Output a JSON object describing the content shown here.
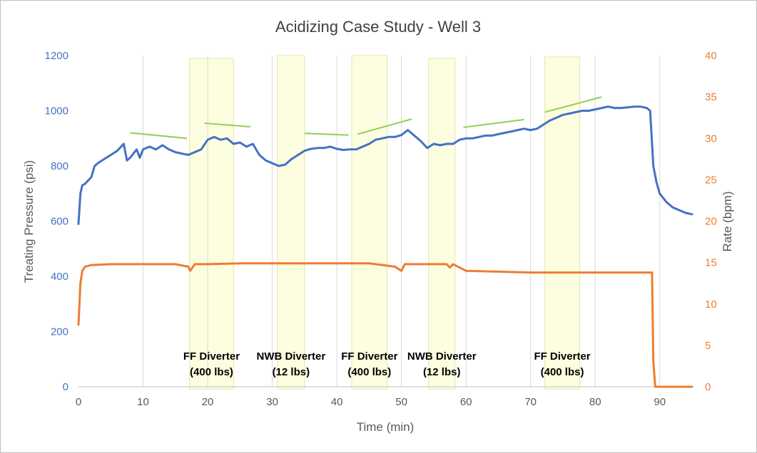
{
  "chart_data": {
    "type": "line",
    "title": "Acidizing Case Study - Well 3",
    "xlabel": "Time (min)",
    "ylabel": "Treating Pressure (psi)",
    "y2label": "Rate (bpm)",
    "xlim": [
      0,
      95
    ],
    "ylim": [
      0,
      1200
    ],
    "y2lim": [
      0,
      40
    ],
    "x_ticks": [
      0,
      10,
      20,
      30,
      40,
      50,
      60,
      70,
      80,
      90
    ],
    "y_ticks": [
      0,
      200,
      400,
      600,
      800,
      1000,
      1200
    ],
    "y2_ticks": [
      0,
      5,
      10,
      15,
      20,
      25,
      30,
      35,
      40
    ],
    "grid": "vertical",
    "colors": {
      "pressure": "#4472c4",
      "rate": "#ed7d31",
      "trend": "#92d050",
      "diverter_band": "#fdfde0",
      "band_border": "#e6e6a8"
    },
    "series": [
      {
        "axis": "left",
        "x": [
          0,
          0.3,
          0.6,
          1,
          2,
          2.5,
          3,
          4,
          5,
          6,
          7,
          7.5,
          8,
          9,
          9.5,
          10,
          11,
          12,
          13,
          14,
          15,
          16,
          17,
          18,
          19,
          20,
          21,
          22,
          23,
          24,
          25,
          26,
          27,
          28,
          29,
          30,
          31,
          32,
          33,
          34,
          35,
          36,
          37,
          38,
          39,
          40,
          41,
          42,
          43,
          44,
          45,
          46,
          47,
          48,
          49,
          50,
          51,
          52,
          53,
          54,
          55,
          56,
          57,
          58,
          59,
          60,
          61,
          62,
          63,
          64,
          65,
          66,
          67,
          68,
          69,
          70,
          71,
          72,
          73,
          74,
          75,
          76,
          77,
          78,
          79,
          80,
          81,
          82,
          83,
          84,
          85,
          86,
          87,
          88,
          88.5,
          89,
          89.5,
          90,
          91,
          92,
          93,
          94,
          95
        ],
        "values": [
          590,
          700,
          730,
          735,
          760,
          800,
          810,
          825,
          840,
          855,
          880,
          820,
          830,
          860,
          830,
          860,
          870,
          860,
          875,
          860,
          850,
          845,
          840,
          850,
          860,
          895,
          905,
          895,
          900,
          880,
          885,
          870,
          880,
          840,
          820,
          810,
          800,
          805,
          825,
          840,
          855,
          862,
          865,
          865,
          870,
          862,
          858,
          860,
          860,
          870,
          880,
          895,
          900,
          905,
          905,
          912,
          930,
          910,
          890,
          865,
          880,
          875,
          880,
          880,
          895,
          900,
          900,
          905,
          910,
          910,
          915,
          920,
          925,
          930,
          935,
          930,
          935,
          950,
          965,
          975,
          985,
          990,
          995,
          1000,
          1000,
          1005,
          1010,
          1015,
          1010,
          1010,
          1012,
          1015,
          1015,
          1010,
          1000,
          800,
          740,
          700,
          670,
          650,
          640,
          630,
          625
        ]
      },
      {
        "axis": "right",
        "x": [
          0,
          0.3,
          0.6,
          1,
          2,
          5,
          10,
          15,
          17,
          17.3,
          18,
          20,
          25,
          30,
          35,
          40,
          45,
          49,
          50,
          50.5,
          51,
          55,
          57,
          57.5,
          58,
          60,
          65,
          70,
          75,
          80,
          85,
          88.8,
          89,
          89.3,
          95
        ],
        "values": [
          7.5,
          12.5,
          14.0,
          14.5,
          14.7,
          14.8,
          14.8,
          14.8,
          14.5,
          14.0,
          14.8,
          14.8,
          14.9,
          14.9,
          14.9,
          14.9,
          14.9,
          14.5,
          14.0,
          14.8,
          14.8,
          14.8,
          14.8,
          14.4,
          14.8,
          14.0,
          13.9,
          13.8,
          13.8,
          13.8,
          13.8,
          13.8,
          3.0,
          0,
          0
        ]
      }
    ],
    "diverter_bands": [
      {
        "x0": 17.2,
        "x1": 24,
        "ytop": 1190,
        "label1": "FF Diverter",
        "label2": "(400 lbs)"
      },
      {
        "x0": 30.8,
        "x1": 35,
        "ytop": 1200,
        "label1": "NWB Diverter",
        "label2": "(12 lbs)"
      },
      {
        "x0": 42.3,
        "x1": 47.8,
        "ytop": 1200,
        "label1": "FF Diverter",
        "label2": "(400 lbs)"
      },
      {
        "x0": 54.2,
        "x1": 58.3,
        "ytop": 1190,
        "label1": "NWB Diverter",
        "label2": "(12 lbs)"
      },
      {
        "x0": 72.2,
        "x1": 77.6,
        "ytop": 1195,
        "label1": "FF Diverter",
        "label2": "(400 lbs)"
      }
    ],
    "trend_lines": [
      {
        "x1": 8,
        "y1": 920,
        "x2": 16.8,
        "y2": 900
      },
      {
        "x1": 19.5,
        "y1": 955,
        "x2": 26.6,
        "y2": 942
      },
      {
        "x1": 35,
        "y1": 918,
        "x2": 41.8,
        "y2": 912
      },
      {
        "x1": 43.2,
        "y1": 915,
        "x2": 51.6,
        "y2": 970
      },
      {
        "x1": 59.6,
        "y1": 940,
        "x2": 69,
        "y2": 968
      },
      {
        "x1": 72.2,
        "y1": 995,
        "x2": 81,
        "y2": 1050
      }
    ]
  }
}
